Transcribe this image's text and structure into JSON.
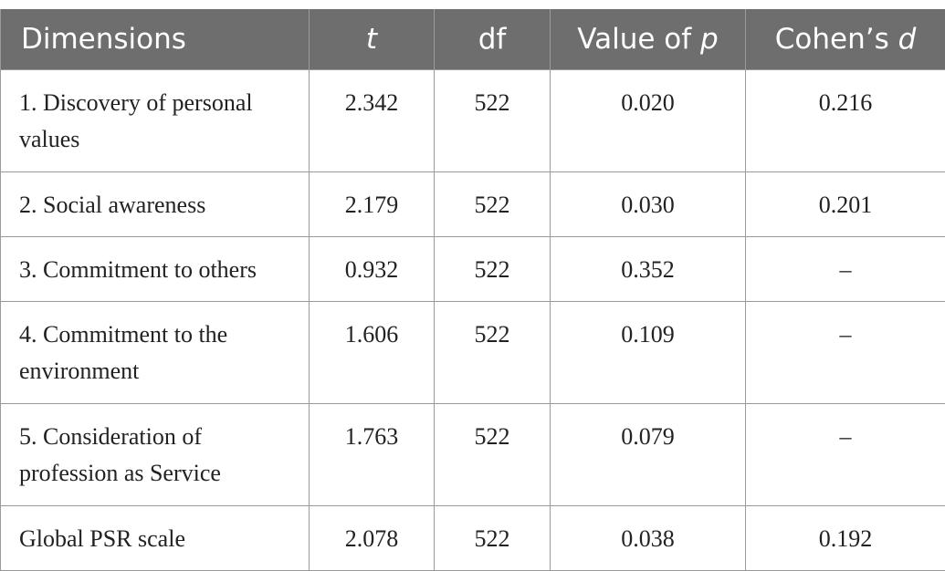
{
  "table": {
    "headers": {
      "dimensions": "Dimensions",
      "t": "t",
      "df": "df",
      "p_prefix": "Value of ",
      "p_var": "p",
      "d_prefix": "Cohen’s ",
      "d_var": "d"
    },
    "rows": [
      {
        "dimension": "1. Discovery of personal values",
        "t": "2.342",
        "df": "522",
        "p": "0.020",
        "d": "0.216"
      },
      {
        "dimension": "2. Social awareness",
        "t": "2.179",
        "df": "522",
        "p": "0.030",
        "d": "0.201"
      },
      {
        "dimension": "3. Commitment to others",
        "t": "0.932",
        "df": "522",
        "p": "0.352",
        "d": "–"
      },
      {
        "dimension": "4. Commitment to the environment",
        "t": "1.606",
        "df": "522",
        "p": "0.109",
        "d": "–"
      },
      {
        "dimension": "5. Consideration of profession as Service",
        "t": "1.763",
        "df": "522",
        "p": "0.079",
        "d": "–"
      },
      {
        "dimension": "Global PSR scale",
        "t": "2.078",
        "df": "522",
        "p": "0.038",
        "d": "0.192"
      }
    ]
  }
}
